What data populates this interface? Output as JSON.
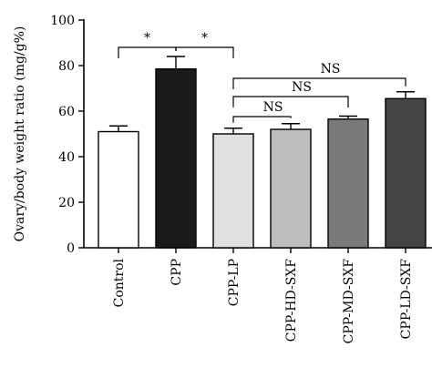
{
  "chart_data": {
    "type": "bar",
    "title": "",
    "xlabel": "",
    "ylabel": "Ovary/body weight ratio (mg/g%)",
    "ylim": [
      0,
      100
    ],
    "yticks": [
      0,
      20,
      40,
      60,
      80,
      100
    ],
    "grid": false,
    "legend": "none",
    "categories": [
      "Control",
      "CPP",
      "CPP-LP",
      "CPP-HD-SXF",
      "CPP-MD-SXF",
      "CPP-LD-SXF"
    ],
    "values": [
      51,
      78.5,
      50,
      52,
      56.5,
      65.5
    ],
    "errors": [
      2.5,
      5.5,
      2.5,
      2.5,
      1.3,
      3
    ],
    "colors": [
      "#ffffff",
      "#1a1a1a",
      "#e0e0e0",
      "#bdbdbd",
      "#7a7a7a",
      "#444444"
    ],
    "annotations": [
      {
        "from": "Control",
        "to": "CPP",
        "label": "*"
      },
      {
        "from": "CPP",
        "to": "CPP-LP",
        "label": "*"
      },
      {
        "from": "CPP-LP",
        "to": "CPP-HD-SXF",
        "label": "NS"
      },
      {
        "from": "CPP-LP",
        "to": "CPP-MD-SXF",
        "label": "NS"
      },
      {
        "from": "CPP-LP",
        "to": "CPP-LD-SXF",
        "label": "NS"
      }
    ]
  }
}
